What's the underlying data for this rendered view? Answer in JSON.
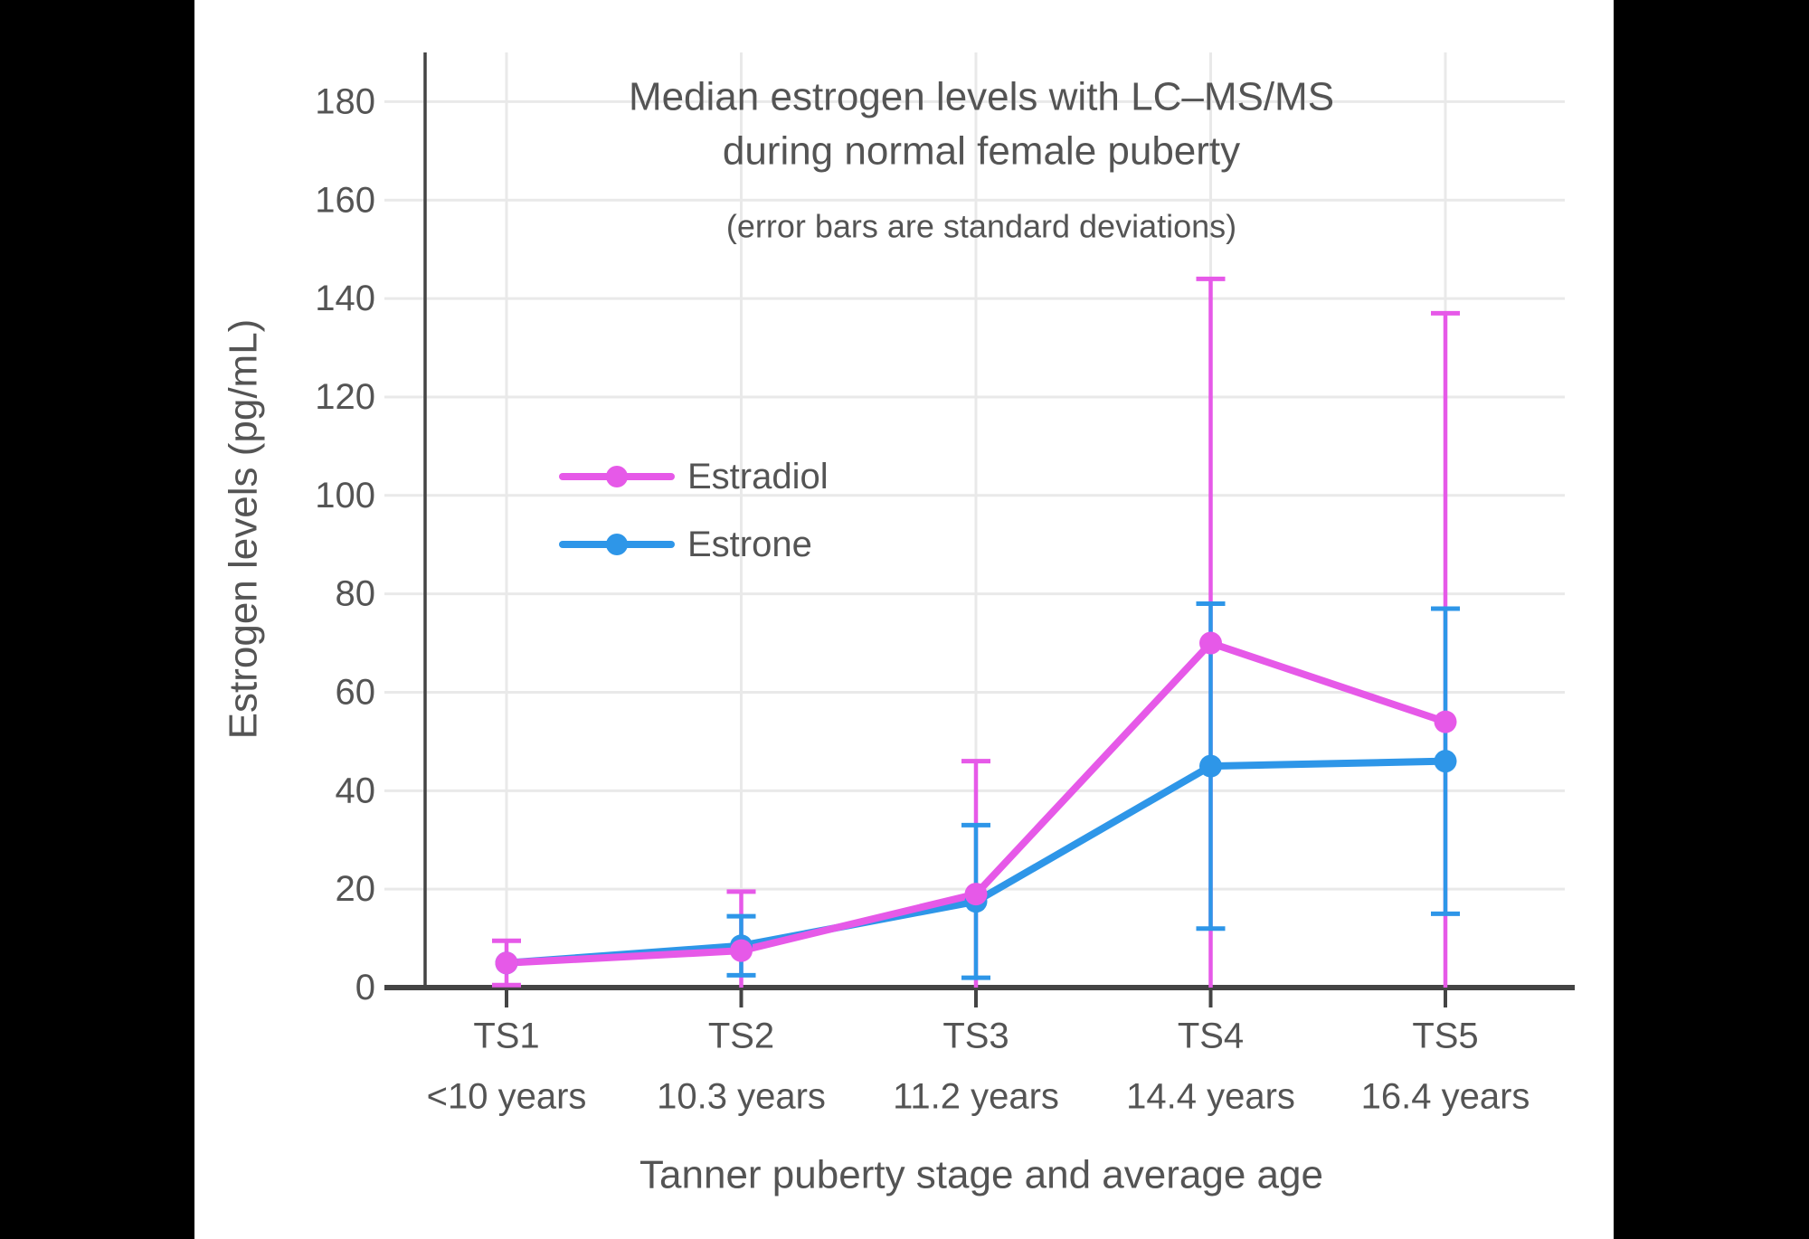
{
  "colors": {
    "letterbox": "#000000",
    "canvas": "#ffffff",
    "text": "#545454",
    "axis": "#444444",
    "grid": "#e9e9e9",
    "estradiol": "#e659e8",
    "estrone": "#2e96e8"
  },
  "chart_data": {
    "type": "line",
    "title_lines": [
      "Median estrogen levels with LC–MS/MS",
      "during normal female puberty"
    ],
    "subtitle": "(error bars are standard deviations)",
    "xlabel": "Tanner puberty stage and average age",
    "ylabel": "Estrogen levels (pg/mL)",
    "categories": [
      "TS1",
      "TS2",
      "TS3",
      "TS4",
      "TS5"
    ],
    "category_ages": [
      "<10 years",
      "10.3 years",
      "11.2 years",
      "14.4 years",
      "16.4 years"
    ],
    "y_ticks": [
      0,
      20,
      40,
      60,
      80,
      100,
      120,
      140,
      160,
      180
    ],
    "ylim": [
      0,
      190
    ],
    "grid": true,
    "legend_position": "inside-top-left",
    "error_bars": "standard deviations",
    "series": [
      {
        "name": "Estradiol",
        "color": "#e659e8",
        "values": [
          5,
          7.5,
          19,
          70,
          54
        ],
        "sd": [
          4.5,
          12,
          27,
          74,
          83
        ]
      },
      {
        "name": "Estrone",
        "color": "#2e96e8",
        "values": [
          5,
          8.5,
          17.5,
          45,
          46
        ],
        "sd": [
          null,
          6,
          15.5,
          33,
          31
        ]
      }
    ]
  }
}
